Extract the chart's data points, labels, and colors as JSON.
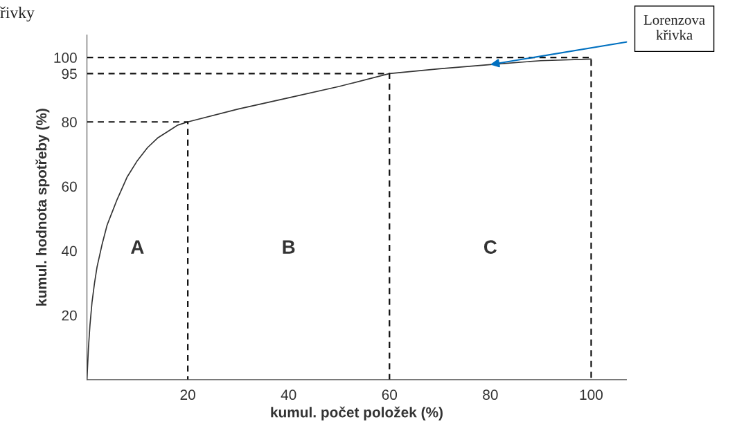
{
  "chart_data": {
    "type": "line",
    "xlabel": "kumul. počet položek (%)",
    "ylabel": "kumul. hodnota spotřeby (%)",
    "xlim": [
      0,
      107
    ],
    "ylim": [
      0,
      107
    ],
    "xticks": [
      20,
      40,
      60,
      80,
      100
    ],
    "yticks": [
      20,
      40,
      60,
      80,
      95,
      100
    ],
    "grid": false,
    "legend": false,
    "marker": "none",
    "series": [
      {
        "color": "#333333",
        "line_style": "solid",
        "x": [
          0,
          0.3,
          0.6,
          1,
          1.5,
          2,
          3,
          4,
          5,
          6,
          8,
          10,
          12,
          14,
          16,
          18,
          20,
          30,
          40,
          50,
          60,
          70,
          80,
          90,
          100
        ],
        "values": [
          0,
          10,
          17,
          24,
          30,
          35,
          42,
          48,
          52,
          56,
          63,
          68,
          72,
          75,
          77,
          79,
          80,
          84,
          87.5,
          91,
          95,
          96.5,
          97.8,
          99,
          99.5
        ]
      },
      {
        "color": "#111111",
        "line_style": "dashed",
        "x": [
          0,
          20,
          20
        ],
        "values": [
          80,
          80,
          0
        ]
      },
      {
        "color": "#111111",
        "line_style": "dashed",
        "x": [
          0,
          60,
          60
        ],
        "values": [
          95,
          95,
          0
        ]
      },
      {
        "color": "#111111",
        "line_style": "dashed",
        "x": [
          0,
          100,
          100
        ],
        "values": [
          100,
          100,
          0
        ]
      }
    ],
    "annotations": [
      "řivky",
      "Lorenzova\nkřivka",
      "A",
      "B",
      "C"
    ]
  }
}
